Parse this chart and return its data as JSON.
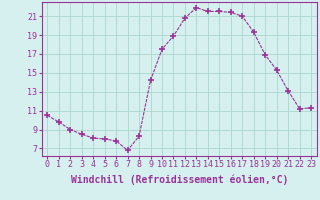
{
  "x": [
    0,
    1,
    2,
    3,
    4,
    5,
    6,
    7,
    8,
    9,
    10,
    11,
    12,
    13,
    14,
    15,
    16,
    17,
    18,
    19,
    20,
    21,
    22,
    23
  ],
  "y": [
    10.5,
    9.8,
    9.0,
    8.5,
    8.1,
    8.0,
    7.8,
    6.8,
    8.3,
    14.2,
    17.5,
    18.9,
    20.8,
    21.9,
    21.5,
    21.5,
    21.4,
    21.0,
    19.3,
    16.9,
    15.3,
    13.1,
    11.2,
    11.3
  ],
  "line_color": "#993399",
  "marker": "+",
  "marker_size": 4,
  "marker_lw": 1.2,
  "bg_color": "#d5f0ee",
  "grid_color": "#aad8cc",
  "xlabel": "Windchill (Refroidissement éolien,°C)",
  "xlabel_fontsize": 7,
  "tick_fontsize": 6,
  "ylim": [
    6.2,
    22.5
  ],
  "xlim": [
    -0.5,
    23.5
  ],
  "yticks": [
    7,
    9,
    11,
    13,
    15,
    17,
    19,
    21
  ],
  "xticks": [
    0,
    1,
    2,
    3,
    4,
    5,
    6,
    7,
    8,
    9,
    10,
    11,
    12,
    13,
    14,
    15,
    16,
    17,
    18,
    19,
    20,
    21,
    22,
    23
  ]
}
